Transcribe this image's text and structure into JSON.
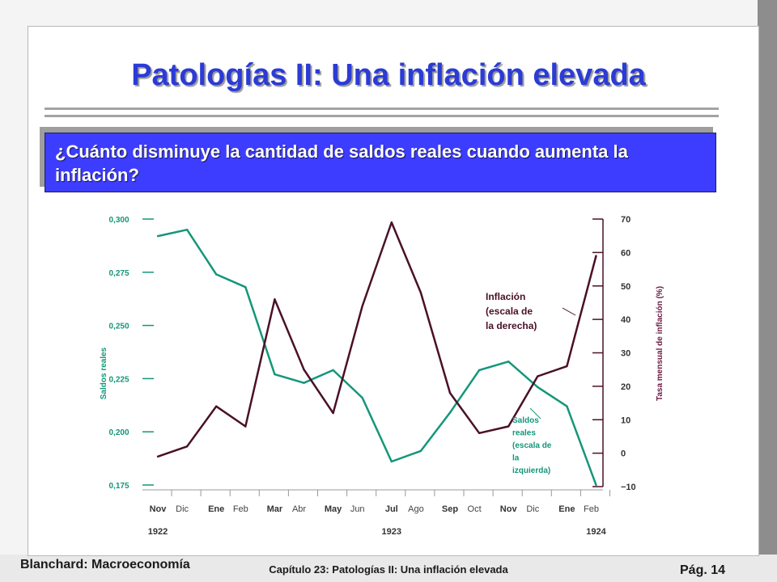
{
  "slide": {
    "title": "Patologías II: Una inflación elevada",
    "question": "¿Cuánto disminuye la cantidad de saldos reales cuando aumenta la inflación?"
  },
  "footer": {
    "left": "Blanchard: Macroeconomía",
    "center": "Capítulo 23: Patologías II: Una inflación elevada",
    "right": "Pág. 14"
  },
  "chart_data": {
    "type": "line",
    "x_labels_upper": [
      "Nov",
      "Ene",
      "Mar",
      "May",
      "Jul",
      "Sep",
      "Nov",
      "Ene"
    ],
    "x_labels_lower": [
      "Dic",
      "Feb",
      "Abr",
      "Jun",
      "Ago",
      "Oct",
      "Dic",
      "Feb"
    ],
    "x_years": [
      "1922",
      "1923",
      "1924"
    ],
    "months": [
      "Nov 1922",
      "Dic 1922",
      "Ene 1923",
      "Feb 1923",
      "Mar 1923",
      "Abr 1923",
      "May 1923",
      "Jun 1923",
      "Jul 1923",
      "Ago 1923",
      "Sep 1923",
      "Oct 1923",
      "Nov 1923",
      "Dic 1923",
      "Ene 1924",
      "Feb 1924"
    ],
    "y_left": {
      "label": "Saldos reales",
      "range": [
        0.175,
        0.3
      ],
      "ticks": [
        "0,175",
        "0,200",
        "0,225",
        "0,250",
        "0,275",
        "0,300"
      ]
    },
    "y_right": {
      "label": "Tasa mensual de inflación (%)",
      "range": [
        -10,
        70
      ],
      "ticks": [
        "−10",
        "0",
        "10",
        "20",
        "30",
        "40",
        "50",
        "60",
        "70"
      ]
    },
    "series": [
      {
        "name": "Saldos reales (escala de la izquierda)",
        "axis": "left",
        "color": "#14967a",
        "values": [
          0.292,
          0.295,
          0.274,
          0.268,
          0.227,
          0.223,
          0.229,
          0.216,
          0.186,
          0.191,
          0.209,
          0.229,
          0.233,
          0.221,
          0.212,
          0.175
        ]
      },
      {
        "name": "Inflación (escala de la derecha)",
        "axis": "right",
        "color": "#4a1028",
        "values": [
          -1,
          2,
          14,
          8,
          46,
          25,
          12,
          44,
          69,
          48,
          18,
          6,
          8,
          23,
          26,
          59
        ]
      }
    ],
    "annotations": {
      "inflation": "Inflación (escala de la derecha)",
      "balances": "Saldos reales (escala de la izquierda)"
    }
  }
}
